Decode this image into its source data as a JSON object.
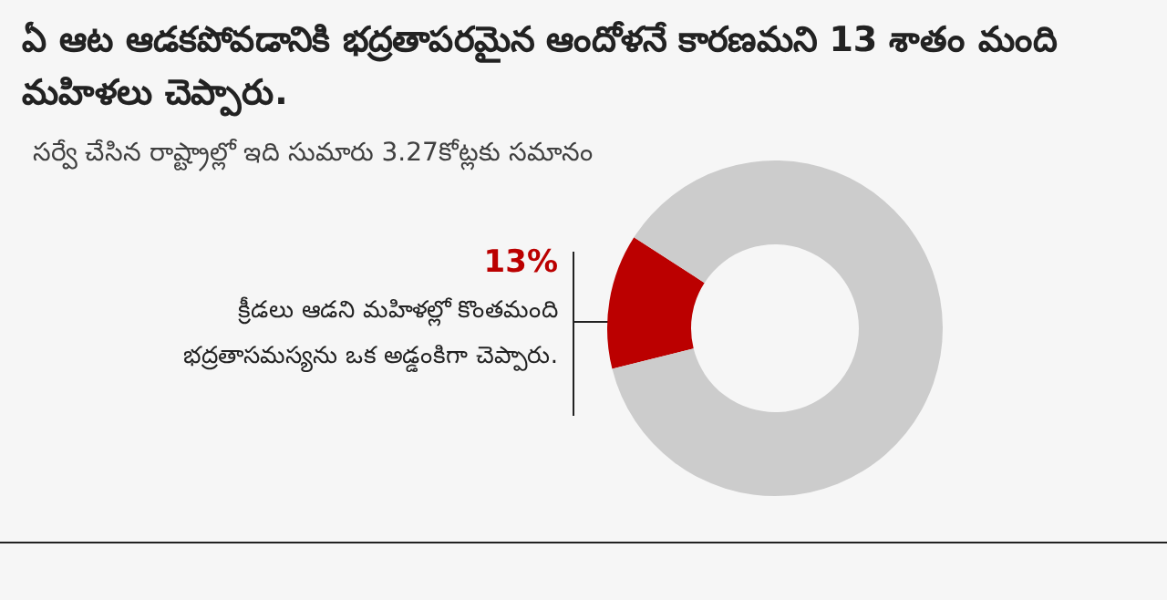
{
  "chart_data": {
    "type": "donut",
    "title": "ఏ ఆట ఆడకపోవడానికి భద్రతాపరమైన ఆందోళనే కారణమని 13 శాతం మంది మహిళలు చెప్పారు.",
    "subtitle": "సర్వే చేసిన రాష్ట్రాల్లో ఇది సుమారు 3.27కోట్లకు సమానం",
    "categories": [
      null,
      null
    ],
    "values": [
      13,
      87
    ],
    "colors": [
      "#bb0000",
      "#cccccc"
    ],
    "value_labels": [
      "13%",
      null
    ],
    "annotations": [
      "క్రీడలు ఆడని మహిళల్లో కొంతమంది భద్రతాసమస్యను ఒక అడ్డంకిగా చెప్పారు."
    ],
    "legend": false
  }
}
